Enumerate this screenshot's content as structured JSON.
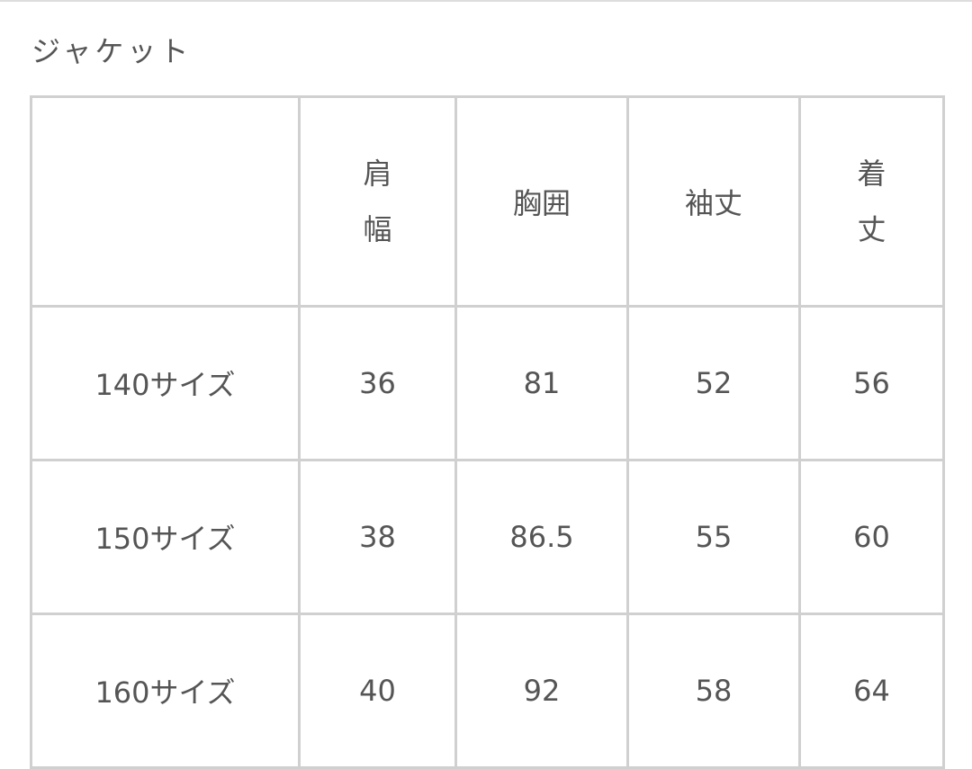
{
  "title": "ジャケット",
  "table": {
    "headers": [
      "",
      "肩幅",
      "胸囲",
      "袖丈",
      "着丈"
    ],
    "rows": [
      {
        "size": "140サイズ",
        "values": [
          "36",
          "81",
          "52",
          "56"
        ]
      },
      {
        "size": "150サイズ",
        "values": [
          "38",
          "86.5",
          "55",
          "60"
        ]
      },
      {
        "size": "160サイズ",
        "values": [
          "40",
          "92",
          "58",
          "64"
        ]
      }
    ]
  }
}
